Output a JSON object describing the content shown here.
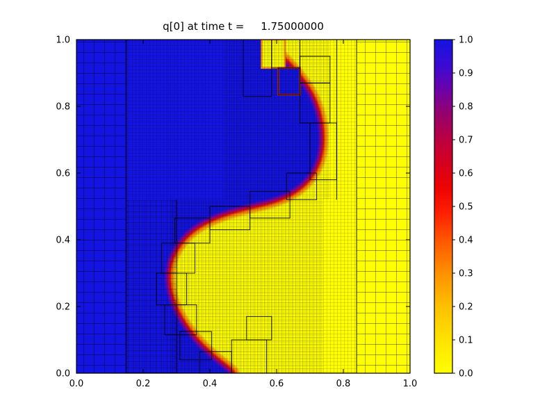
{
  "figure": {
    "title": "q[0] at time t =     1.75000000"
  },
  "chart_data": {
    "type": "heatmap",
    "title": "q[0] at time t =     1.75000000",
    "xlabel": "",
    "ylabel": "",
    "xlim": [
      0.0,
      1.0
    ],
    "ylim": [
      0.0,
      1.0
    ],
    "grid": false,
    "legend": "colorbar-right",
    "x_tick_labels": [
      "0.0",
      "0.2",
      "0.4",
      "0.6",
      "0.8",
      "1.0"
    ],
    "y_tick_labels": [
      "0.0",
      "0.2",
      "0.4",
      "0.6",
      "0.8",
      "1.0"
    ],
    "field": {
      "variable": "q[0]",
      "time": "1.75000000",
      "high_value": 1.0,
      "low_value": 0.0,
      "high_color": "#1414e0",
      "low_color": "#ffff00",
      "value_left_of_interface": 1.0,
      "value_right_of_interface": 0.0,
      "interface_band_colors": {
        "inner": "#8a00a0",
        "mid": "#e81000",
        "outer": "#ffa000"
      },
      "interface_curve": [
        [
          0.555,
          1.0
        ],
        [
          0.588,
          0.968
        ],
        [
          0.634,
          0.925
        ],
        [
          0.678,
          0.872
        ],
        [
          0.71,
          0.818
        ],
        [
          0.728,
          0.76
        ],
        [
          0.734,
          0.7
        ],
        [
          0.726,
          0.642
        ],
        [
          0.7,
          0.59
        ],
        [
          0.658,
          0.55
        ],
        [
          0.6,
          0.522
        ],
        [
          0.532,
          0.505
        ],
        [
          0.462,
          0.488
        ],
        [
          0.395,
          0.463
        ],
        [
          0.338,
          0.428
        ],
        [
          0.298,
          0.382
        ],
        [
          0.274,
          0.33
        ],
        [
          0.27,
          0.272
        ],
        [
          0.284,
          0.212
        ],
        [
          0.314,
          0.152
        ],
        [
          0.356,
          0.096
        ],
        [
          0.406,
          0.048
        ],
        [
          0.452,
          0.012
        ],
        [
          0.465,
          0.0
        ]
      ]
    },
    "colorbar": {
      "tick_labels": [
        "1.0",
        "0.9",
        "0.8",
        "0.7",
        "0.6",
        "0.5",
        "0.4",
        "0.3",
        "0.2",
        "0.1",
        "0.0"
      ],
      "gradient_stops": [
        [
          0.0,
          "#ffff00"
        ],
        [
          0.1,
          "#ffe300"
        ],
        [
          0.2,
          "#ffc000"
        ],
        [
          0.3,
          "#ff9000"
        ],
        [
          0.4,
          "#ff5500"
        ],
        [
          0.48,
          "#ff2000"
        ],
        [
          0.55,
          "#ee0400"
        ],
        [
          0.63,
          "#d4001e"
        ],
        [
          0.7,
          "#bb0040"
        ],
        [
          0.78,
          "#94006e"
        ],
        [
          0.85,
          "#6c02a8"
        ],
        [
          0.92,
          "#3c0ad2"
        ],
        [
          1.0,
          "#1414e0"
        ]
      ]
    },
    "amr": {
      "grid_regions": [
        {
          "x0": 0.0,
          "y0": 0.0,
          "x1": 0.15,
          "y1": 1.0,
          "cell": 15,
          "lw": 0.9,
          "alpha": 0.75
        },
        {
          "x0": 0.84,
          "y0": 0.0,
          "x1": 1.0,
          "y1": 1.0,
          "cell": 15,
          "lw": 0.9,
          "alpha": 0.75
        },
        {
          "x0": 0.15,
          "y0": 0.0,
          "x1": 0.84,
          "y1": 1.0,
          "cell": 5,
          "lw": 0.55,
          "alpha": 0.5
        },
        {
          "x0": 0.15,
          "y0": 0.0,
          "x1": 0.3,
          "y1": 0.52,
          "cell": 8,
          "lw": 0.7,
          "alpha": 0.55
        },
        {
          "x0": 0.44,
          "y0": 0.52,
          "x1": 0.76,
          "y1": 1.0,
          "cell": 2.5,
          "lw": 0.4,
          "alpha": 0.4
        },
        {
          "x0": 0.28,
          "y0": 0.0,
          "x1": 0.74,
          "y1": 0.52,
          "cell": 2.5,
          "lw": 0.4,
          "alpha": 0.4
        }
      ],
      "level_boundaries": [
        [
          0.15,
          0.0,
          0.15,
          1.0
        ],
        [
          0.84,
          0.0,
          0.84,
          1.0
        ],
        [
          0.3,
          0.0,
          0.3,
          0.52
        ],
        [
          0.78,
          0.52,
          0.78,
          1.0
        ]
      ],
      "patch_outlines": [
        [
          0.5,
          0.83,
          0.585,
          1.0
        ],
        [
          0.585,
          0.915,
          0.67,
          1.0
        ],
        [
          0.605,
          0.835,
          0.67,
          0.915
        ],
        [
          0.67,
          0.75,
          0.76,
          0.87
        ],
        [
          0.67,
          0.87,
          0.76,
          0.95
        ],
        [
          0.7,
          0.58,
          0.78,
          0.75
        ],
        [
          0.63,
          0.52,
          0.72,
          0.6
        ],
        [
          0.52,
          0.465,
          0.64,
          0.545
        ],
        [
          0.4,
          0.43,
          0.52,
          0.5
        ],
        [
          0.295,
          0.39,
          0.4,
          0.465
        ],
        [
          0.255,
          0.3,
          0.355,
          0.39
        ],
        [
          0.24,
          0.205,
          0.33,
          0.3
        ],
        [
          0.265,
          0.115,
          0.36,
          0.205
        ],
        [
          0.31,
          0.04,
          0.405,
          0.125
        ],
        [
          0.37,
          0.0,
          0.465,
          0.065
        ],
        [
          0.465,
          0.0,
          0.57,
          0.1
        ],
        [
          0.51,
          0.1,
          0.585,
          0.17
        ]
      ],
      "filled_cells": [
        {
          "x0": 0.555,
          "y0": 0.915,
          "x1": 0.625,
          "y1": 1.0,
          "color": "#ffff00",
          "fringe": "#ff8c00"
        },
        {
          "x0": 0.605,
          "y0": 0.835,
          "x1": 0.67,
          "y1": 0.915,
          "color": "#1414e0",
          "fringe": "#e03000"
        }
      ]
    }
  }
}
